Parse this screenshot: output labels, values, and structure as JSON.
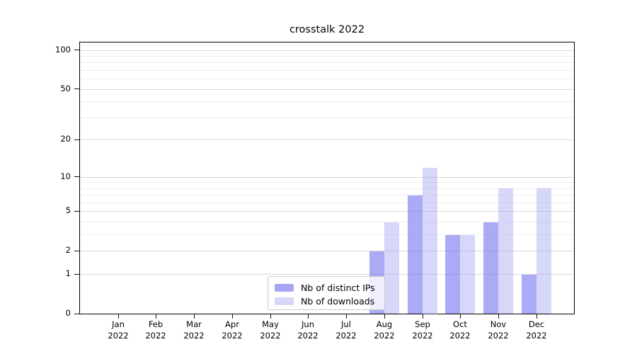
{
  "title": "crosstalk 2022",
  "legend": {
    "items": [
      {
        "label": "Nb of distinct IPs",
        "color": "#a6a6f4",
        "fill": "rgba(124,124,240,0.65)"
      },
      {
        "label": "Nb of downloads",
        "color": "#d7d7f9",
        "fill": "rgba(150,150,242,0.38)"
      }
    ]
  },
  "chart_data": {
    "type": "bar",
    "title": "crosstalk 2022",
    "categories": [
      "Jan 2022",
      "Feb 2022",
      "Mar 2022",
      "Apr 2022",
      "May 2022",
      "Jun 2022",
      "Jul 2022",
      "Aug 2022",
      "Sep 2022",
      "Oct 2022",
      "Nov 2022",
      "Dec 2022"
    ],
    "x_tick_lines": [
      [
        "Jan",
        "2022"
      ],
      [
        "Feb",
        "2022"
      ],
      [
        "Mar",
        "2022"
      ],
      [
        "Apr",
        "2022"
      ],
      [
        "May",
        "2022"
      ],
      [
        "Jun",
        "2022"
      ],
      [
        "Jul",
        "2022"
      ],
      [
        "Aug",
        "2022"
      ],
      [
        "Sep",
        "2022"
      ],
      [
        "Oct",
        "2022"
      ],
      [
        "Nov",
        "2022"
      ],
      [
        "Dec",
        "2022"
      ]
    ],
    "series": [
      {
        "name": "Nb of distinct IPs",
        "values": [
          0,
          0,
          0,
          0,
          0,
          0,
          0,
          2,
          7,
          3,
          4,
          1
        ],
        "color": "#a6a6f4"
      },
      {
        "name": "Nb of downloads",
        "values": [
          0,
          0,
          0,
          0,
          0,
          0,
          0,
          4,
          12,
          3,
          8,
          8
        ],
        "color": "#d7d7f9"
      }
    ],
    "xlabel": "",
    "ylabel": "",
    "yscale": "log(1+x)",
    "yticks": [
      0,
      1,
      2,
      5,
      10,
      20,
      50,
      100
    ],
    "yticks_minor": [
      3,
      4,
      6,
      7,
      8,
      9,
      30,
      40,
      60,
      70,
      80,
      90,
      110
    ],
    "ylim": [
      0,
      116
    ],
    "grid": "horizontal",
    "legend_position": "inside lower center"
  }
}
